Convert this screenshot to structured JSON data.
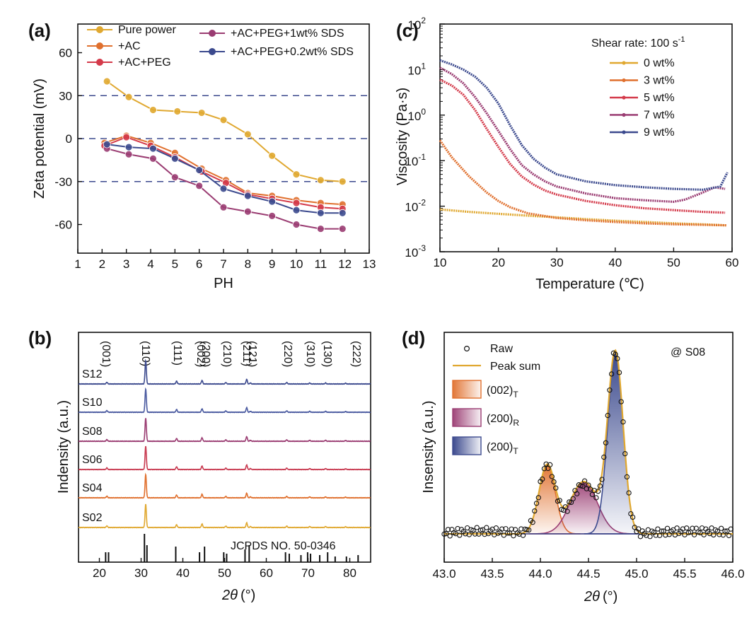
{
  "chart_data": [
    {
      "id": "a",
      "panel_label": "(a)",
      "type": "line",
      "xlabel": "PH",
      "ylabel": "Zeta potential (mV)",
      "xlim": [
        1,
        13
      ],
      "ylim": [
        -80,
        80
      ],
      "xticks": [
        1,
        2,
        3,
        4,
        5,
        6,
        7,
        8,
        9,
        10,
        11,
        12,
        13
      ],
      "yticks": [
        -60,
        -30,
        0,
        30,
        60
      ],
      "reference_lines": [
        30,
        0,
        -30
      ],
      "series": [
        {
          "name": "Pure power",
          "color": "#e0a830",
          "x": [
            2.2,
            3.1,
            4.1,
            5.1,
            6.1,
            7.0,
            8.0,
            9.0,
            10.0,
            11.0,
            11.9
          ],
          "y": [
            40,
            29,
            20,
            19,
            18,
            13,
            3,
            -12,
            -25,
            -29,
            -30
          ]
        },
        {
          "name": "+AC",
          "color": "#e0702e",
          "x": [
            2.1,
            3.0,
            4.0,
            5.0,
            6.1,
            7.1,
            8.0,
            9.0,
            10.0,
            11.0,
            11.9
          ],
          "y": [
            -3,
            2,
            -3,
            -10,
            -21,
            -29,
            -38,
            -40,
            -43,
            -45,
            -46
          ]
        },
        {
          "name": "+AC+PEG",
          "color": "#d43a4a",
          "x": [
            2.1,
            3.0,
            4.0,
            5.0,
            6.1,
            7.1,
            8.0,
            9.0,
            10.0,
            11.0,
            11.9
          ],
          "y": [
            -5,
            1,
            -5,
            -13,
            -23,
            -31,
            -39,
            -42,
            -45,
            -48,
            -49
          ]
        },
        {
          "name": "+AC+PEG+1wt% SDS",
          "color": "#9a3c72",
          "x": [
            2.2,
            3.1,
            4.1,
            5.0,
            6.0,
            7.0,
            8.0,
            9.0,
            10.0,
            11.0,
            11.9
          ],
          "y": [
            -7,
            -11,
            -14,
            -27,
            -33,
            -48,
            -51,
            -54,
            -60,
            -63,
            -63
          ]
        },
        {
          "name": "+AC+PEG+0.2wt% SDS",
          "color": "#3c4a8e",
          "x": [
            2.2,
            3.1,
            4.1,
            5.0,
            6.0,
            7.0,
            8.0,
            9.0,
            10.0,
            11.0,
            11.9
          ],
          "y": [
            -4,
            -6,
            -7,
            -14,
            -22,
            -35,
            -40,
            -44,
            -50,
            -52,
            -52
          ]
        }
      ]
    },
    {
      "id": "c",
      "panel_label": "(c)",
      "type": "line",
      "xlabel": "Temperature (℃)",
      "ylabel": "Viscosity (Pa·s)",
      "yscale": "log",
      "xlim": [
        10,
        60
      ],
      "ylim": [
        0.001,
        100
      ],
      "xticks": [
        10,
        20,
        30,
        40,
        50,
        60
      ],
      "ytick_labels": [
        {
          "base": "10",
          "exp": "-3"
        },
        {
          "base": "10",
          "exp": "-2"
        },
        {
          "base": "10",
          "exp": "-1"
        },
        {
          "base": "10",
          "exp": "0"
        },
        {
          "base": "10",
          "exp": "1"
        },
        {
          "base": "10",
          "exp": "2"
        }
      ],
      "legend_title": "Shear rate: 100 s",
      "legend_title_sup": "-1",
      "series": [
        {
          "name": "0 wt%",
          "color": "#e0a830",
          "x": [
            10,
            15,
            20,
            25,
            30,
            35,
            40,
            45,
            50,
            55,
            59
          ],
          "y": [
            0.0085,
            0.0075,
            0.0068,
            0.0062,
            0.0057,
            0.0052,
            0.0048,
            0.0045,
            0.0042,
            0.004,
            0.0038
          ]
        },
        {
          "name": "3 wt%",
          "color": "#e0702e",
          "x": [
            10,
            12,
            15,
            18,
            20,
            22,
            25,
            30,
            35,
            40,
            45,
            50,
            55,
            59
          ],
          "y": [
            0.28,
            0.12,
            0.045,
            0.02,
            0.013,
            0.0095,
            0.007,
            0.0055,
            0.0049,
            0.0045,
            0.0042,
            0.004,
            0.0039,
            0.0038
          ]
        },
        {
          "name": "5 wt%",
          "color": "#d43a4a",
          "x": [
            10,
            12,
            14,
            16,
            18,
            20,
            22,
            24,
            26,
            28,
            30,
            35,
            40,
            45,
            50,
            55,
            58.8
          ],
          "y": [
            6,
            4.5,
            2.8,
            1.3,
            0.5,
            0.2,
            0.085,
            0.045,
            0.03,
            0.022,
            0.018,
            0.013,
            0.0105,
            0.009,
            0.0082,
            0.0075,
            0.0072
          ]
        },
        {
          "name": "7 wt%",
          "color": "#9a3c72",
          "x": [
            10,
            12,
            14,
            16,
            18,
            20,
            22,
            24,
            26,
            28,
            30,
            35,
            40,
            45,
            50,
            52,
            55,
            57,
            58.8
          ],
          "y": [
            11,
            8,
            5,
            2.5,
            1.1,
            0.45,
            0.18,
            0.08,
            0.05,
            0.035,
            0.027,
            0.019,
            0.015,
            0.0135,
            0.0125,
            0.014,
            0.02,
            0.026,
            0.024
          ]
        },
        {
          "name": "9 wt%",
          "color": "#3c4a8e",
          "x": [
            10,
            12,
            14,
            16,
            18,
            20,
            22,
            24,
            26,
            28,
            30,
            35,
            40,
            45,
            50,
            55,
            58,
            59.2
          ],
          "y": [
            16,
            13,
            10,
            7,
            4,
            1.8,
            0.6,
            0.22,
            0.11,
            0.07,
            0.05,
            0.035,
            0.029,
            0.026,
            0.024,
            0.023,
            0.027,
            0.055
          ]
        }
      ]
    },
    {
      "id": "b",
      "panel_label": "(b)",
      "type": "line",
      "xlabel": "2θ (°)",
      "ylabel": "Indensity (a.u.)",
      "xlim": [
        15,
        85
      ],
      "xticks": [
        20,
        30,
        40,
        50,
        60,
        70,
        80
      ],
      "peak_labels": [
        {
          "text": "(001)",
          "x": 21.5
        },
        {
          "text": "(110)",
          "x": 31.0
        },
        {
          "text": "(111)",
          "x": 38.6
        },
        {
          "text": "(002)",
          "x": 44.2
        },
        {
          "text": "(200)",
          "x": 45.4
        },
        {
          "text": "(210)",
          "x": 50.5
        },
        {
          "text": "(211)",
          "x": 55.2
        },
        {
          "text": "(121)",
          "x": 56.6
        },
        {
          "text": "(220)",
          "x": 65.0
        },
        {
          "text": "(310)",
          "x": 70.5
        },
        {
          "text": "(130)",
          "x": 74.5
        },
        {
          "text": "(222)",
          "x": 81.5
        }
      ],
      "peaks": [
        {
          "x": 21.8,
          "h": 0.07
        },
        {
          "x": 31.1,
          "h": 1.0
        },
        {
          "x": 38.5,
          "h": 0.12
        },
        {
          "x": 44.6,
          "h": 0.15
        },
        {
          "x": 50.3,
          "h": 0.06
        },
        {
          "x": 55.3,
          "h": 0.2
        },
        {
          "x": 56.2,
          "h": 0.04
        },
        {
          "x": 64.9,
          "h": 0.06
        },
        {
          "x": 70.4,
          "h": 0.04
        },
        {
          "x": 74.2,
          "h": 0.04
        },
        {
          "x": 79.0,
          "h": 0.03
        }
      ],
      "series": [
        {
          "name": "S12",
          "color": "#3c4a8e"
        },
        {
          "name": "S10",
          "color": "#4a5aa0"
        },
        {
          "name": "S08",
          "color": "#9a3c72"
        },
        {
          "name": "S06",
          "color": "#c83a50"
        },
        {
          "name": "S04",
          "color": "#e0702e"
        },
        {
          "name": "S02",
          "color": "#e0a830"
        }
      ],
      "reference_label": "JCPDS NO. 50-0346",
      "reference_sticks": [
        {
          "x": 21.5,
          "h": 0.35
        },
        {
          "x": 22.2,
          "h": 0.35
        },
        {
          "x": 30.8,
          "h": 1.0
        },
        {
          "x": 31.4,
          "h": 0.6
        },
        {
          "x": 38.3,
          "h": 0.55
        },
        {
          "x": 44.0,
          "h": 0.35
        },
        {
          "x": 45.2,
          "h": 0.55
        },
        {
          "x": 49.8,
          "h": 0.35
        },
        {
          "x": 50.5,
          "h": 0.3
        },
        {
          "x": 54.9,
          "h": 0.45
        },
        {
          "x": 55.9,
          "h": 0.6
        },
        {
          "x": 64.6,
          "h": 0.35
        },
        {
          "x": 65.5,
          "h": 0.3
        },
        {
          "x": 68.3,
          "h": 0.25
        },
        {
          "x": 69.9,
          "h": 0.35
        },
        {
          "x": 70.6,
          "h": 0.3
        },
        {
          "x": 72.8,
          "h": 0.25
        },
        {
          "x": 74.7,
          "h": 0.35
        },
        {
          "x": 76.5,
          "h": 0.2
        },
        {
          "x": 79.2,
          "h": 0.2
        },
        {
          "x": 82.0,
          "h": 0.25
        }
      ]
    },
    {
      "id": "d",
      "panel_label": "(d)",
      "type": "scatter",
      "xlabel": "2θ (°)",
      "ylabel": "Insensity (a.u.)",
      "xlim": [
        43.0,
        46.0
      ],
      "ylim": [
        0,
        1.12
      ],
      "xticks": [
        43.0,
        43.5,
        44.0,
        44.5,
        45.0,
        45.5,
        46.0
      ],
      "xtick_labels": [
        "43.0",
        "43.5",
        "44.0",
        "44.5",
        "45.0",
        "45.5",
        "46.0"
      ],
      "annotation": "@ S08",
      "background": 0.03,
      "components": [
        {
          "name": "(002)",
          "sub": "T",
          "center": 44.07,
          "amplitude": 0.38,
          "sigma": 0.085,
          "color": "#e0702e"
        },
        {
          "name": "(200)",
          "sub": "R",
          "center": 44.45,
          "amplitude": 0.29,
          "sigma": 0.14,
          "color": "#9a3c72"
        },
        {
          "name": "(200)",
          "sub": "T",
          "center": 44.78,
          "amplitude": 1.0,
          "sigma": 0.08,
          "color": "#3c4a8e"
        }
      ],
      "legend": {
        "raw": "Raw",
        "peak_sum": "Peak sum",
        "peak_sum_color": "#e0a830"
      }
    }
  ]
}
